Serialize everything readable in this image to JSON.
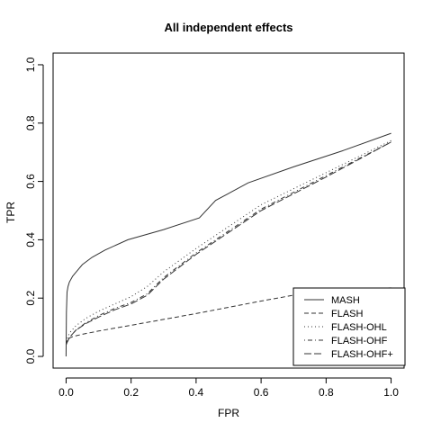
{
  "chart_data": {
    "type": "line",
    "title": "All independent effects",
    "xlabel": "FPR",
    "ylabel": "TPR",
    "xlim": [
      -0.04,
      1.04
    ],
    "ylim": [
      -0.04,
      1.04
    ],
    "xticks": [
      "0.0",
      "0.2",
      "0.4",
      "0.6",
      "0.8",
      "1.0"
    ],
    "yticks": [
      "0.0",
      "0.2",
      "0.4",
      "0.6",
      "0.8",
      "1.0"
    ],
    "grid": false,
    "legend_position": "bottom-right",
    "series": [
      {
        "name": "MASH",
        "line_style": "solid",
        "x": [
          0,
          0.001,
          0.003,
          0.006,
          0.01,
          0.02,
          0.035,
          0.05,
          0.08,
          0.12,
          0.19,
          0.3,
          0.41,
          0.46,
          0.56,
          0.7,
          0.85,
          1.0
        ],
        "y": [
          0,
          0.15,
          0.22,
          0.24,
          0.255,
          0.275,
          0.295,
          0.315,
          0.34,
          0.365,
          0.4,
          0.435,
          0.475,
          0.535,
          0.595,
          0.65,
          0.705,
          0.765
        ]
      },
      {
        "name": "FLASH",
        "line_style": "dashed",
        "x": [
          0,
          0.005,
          0.02,
          0.05,
          0.1,
          0.2,
          0.4,
          0.6,
          0.8,
          1.0
        ],
        "y": [
          0.04,
          0.06,
          0.068,
          0.076,
          0.087,
          0.107,
          0.147,
          0.19,
          0.23,
          0.235
        ]
      },
      {
        "name": "FLASH-OHL",
        "line_style": "dotted",
        "x": [
          0,
          0.01,
          0.03,
          0.06,
          0.1,
          0.15,
          0.2,
          0.25,
          0.3,
          0.4,
          0.5,
          0.6,
          0.8,
          1.0
        ],
        "y": [
          0.05,
          0.08,
          0.105,
          0.13,
          0.155,
          0.18,
          0.205,
          0.24,
          0.29,
          0.37,
          0.445,
          0.52,
          0.63,
          0.74
        ]
      },
      {
        "name": "FLASH-OHF",
        "line_style": "dotdash",
        "x": [
          0,
          0.01,
          0.03,
          0.06,
          0.1,
          0.15,
          0.2,
          0.25,
          0.3,
          0.4,
          0.5,
          0.6,
          0.8,
          1.0
        ],
        "y": [
          0.04,
          0.065,
          0.09,
          0.115,
          0.14,
          0.165,
          0.185,
          0.215,
          0.27,
          0.355,
          0.43,
          0.505,
          0.62,
          0.735
        ]
      },
      {
        "name": "FLASH-OHF+",
        "line_style": "longdash",
        "x": [
          0,
          0.01,
          0.03,
          0.06,
          0.1,
          0.15,
          0.2,
          0.25,
          0.3,
          0.4,
          0.5,
          0.6,
          0.8,
          1.0
        ],
        "y": [
          0.04,
          0.065,
          0.09,
          0.112,
          0.135,
          0.16,
          0.18,
          0.21,
          0.265,
          0.35,
          0.425,
          0.5,
          0.615,
          0.735
        ]
      }
    ]
  }
}
